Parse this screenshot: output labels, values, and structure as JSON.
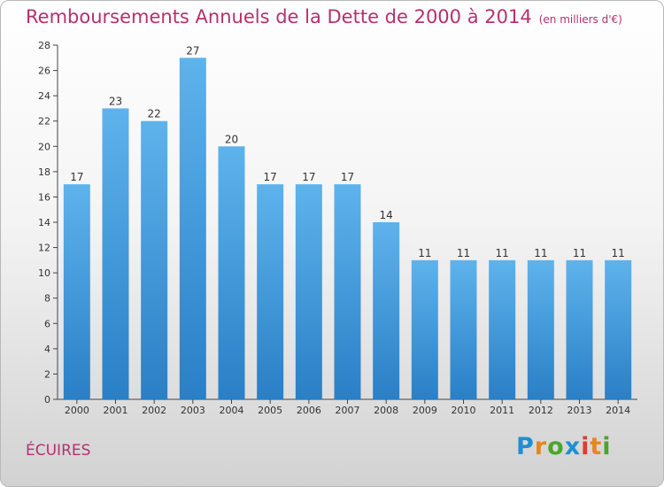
{
  "title": "Remboursements Annuels de la Dette de 2000 à 2014",
  "subtitle": "(en milliers d'€)",
  "commune": "ÉCUIRES",
  "logo": [
    "P",
    "r",
    "o",
    "x",
    "i",
    "t",
    "i"
  ],
  "colors": {
    "bar_light": "#5eb3ec",
    "bar_dark": "#2a7fc6",
    "title": "#b5306f",
    "logo": [
      "#1f8fd1",
      "#e6871c",
      "#49a62b",
      "#1f8fd1",
      "#e03c31",
      "#e6871c",
      "#49a62b"
    ]
  },
  "chart_data": {
    "type": "bar",
    "categories": [
      "2000",
      "2001",
      "2002",
      "2003",
      "2004",
      "2005",
      "2006",
      "2007",
      "2008",
      "2009",
      "2010",
      "2011",
      "2012",
      "2013",
      "2014"
    ],
    "values": [
      17,
      23,
      22,
      27,
      20,
      17,
      17,
      17,
      14,
      11,
      11,
      11,
      11,
      11,
      11
    ],
    "ylim": [
      0,
      28
    ],
    "yticks": [
      0,
      2,
      4,
      6,
      8,
      10,
      12,
      14,
      16,
      18,
      20,
      22,
      24,
      26,
      28
    ],
    "grid": false,
    "legend": "none"
  }
}
